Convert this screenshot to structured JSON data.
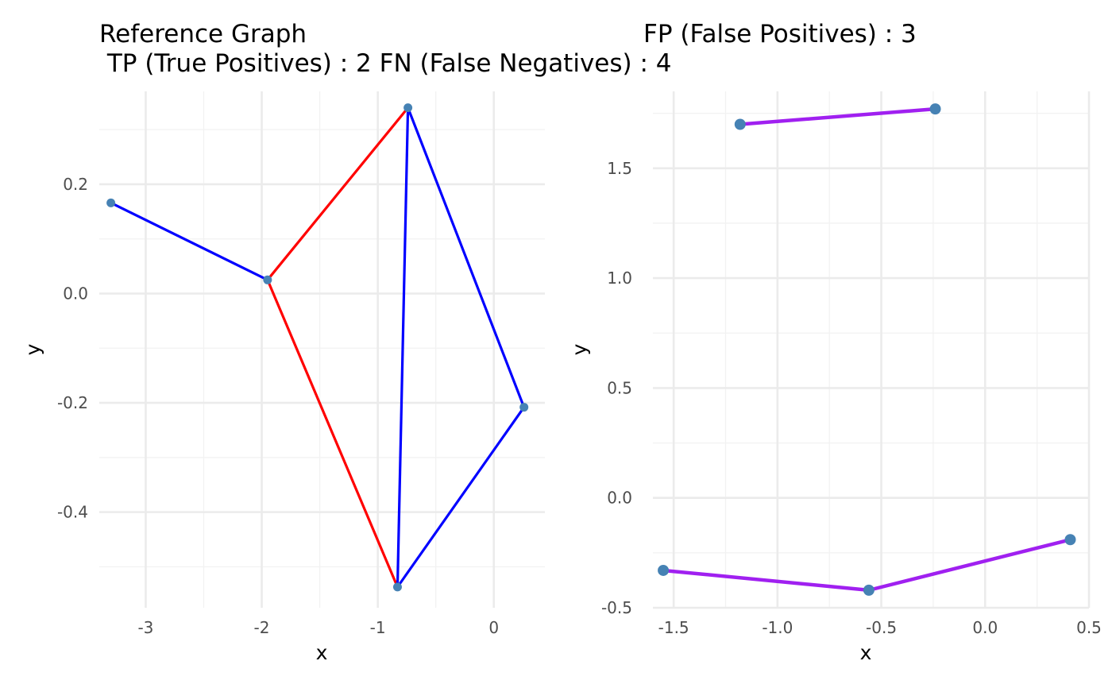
{
  "titles": {
    "left_line1": "Reference Graph",
    "left_line2": " TP (True Positives) : 2 FN (False Negatives) : 4",
    "right_line1": "FP (False Positives) : 3"
  },
  "colors": {
    "tp_edge": "#FF0000",
    "fn_edge": "#0000FF",
    "fp_edge": "#A020F0",
    "node": "#4682B4",
    "grid_major": "#EBEBEB",
    "grid_minor": "#F2F2F2",
    "tick_text": "#4D4D4D"
  },
  "chart_data": [
    {
      "type": "network",
      "name": "reference",
      "xlabel": "x",
      "ylabel": "y",
      "xlim": [
        -3.4,
        0.44
      ],
      "ylim": [
        -0.575,
        0.37
      ],
      "xticks": [
        -3,
        -2,
        -1,
        0
      ],
      "xtick_labels": [
        "-3",
        "-2",
        "-1",
        "0"
      ],
      "yticks": [
        -0.4,
        -0.2,
        0.0,
        0.2
      ],
      "ytick_labels": [
        "-0.4",
        "-0.2",
        "0.0",
        "0.2"
      ],
      "xminor": [
        -2.5,
        -1.5,
        -0.5
      ],
      "yminor": [
        -0.5,
        -0.3,
        -0.1,
        0.1,
        0.3
      ],
      "grid": true,
      "nodes": [
        {
          "x": -3.3,
          "y": 0.166
        },
        {
          "x": -1.95,
          "y": 0.025
        },
        {
          "x": -0.74,
          "y": 0.34
        },
        {
          "x": 0.26,
          "y": -0.208
        },
        {
          "x": -0.83,
          "y": -0.537
        }
      ],
      "edges": [
        {
          "from": 0,
          "to": 1,
          "kind": "FN"
        },
        {
          "from": 1,
          "to": 2,
          "kind": "TP"
        },
        {
          "from": 1,
          "to": 4,
          "kind": "TP"
        },
        {
          "from": 2,
          "to": 4,
          "kind": "FN"
        },
        {
          "from": 2,
          "to": 3,
          "kind": "FN"
        },
        {
          "from": 3,
          "to": 4,
          "kind": "FN"
        }
      ]
    },
    {
      "type": "network",
      "name": "false-positives",
      "xlabel": "x",
      "ylabel": "y",
      "xlim": [
        -1.6,
        0.5
      ],
      "ylim": [
        -0.5,
        1.85
      ],
      "xticks": [
        -1.5,
        -1.0,
        -0.5,
        0.0,
        0.5
      ],
      "xtick_labels": [
        "-1.5",
        "-1.0",
        "-0.5",
        "0.0",
        "0.5"
      ],
      "yticks": [
        -0.5,
        0.0,
        0.5,
        1.0,
        1.5
      ],
      "ytick_labels": [
        "-0.5",
        "0.0",
        "0.5",
        "1.0",
        "1.5"
      ],
      "xminor": [
        -1.25,
        -0.75,
        -0.25,
        0.25
      ],
      "yminor": [
        -0.25,
        0.25,
        0.75,
        1.25,
        1.75
      ],
      "grid": true,
      "nodes": [
        {
          "x": -1.18,
          "y": 1.7
        },
        {
          "x": -0.24,
          "y": 1.77
        },
        {
          "x": -1.55,
          "y": -0.33
        },
        {
          "x": -0.56,
          "y": -0.42
        },
        {
          "x": 0.41,
          "y": -0.19
        }
      ],
      "edges": [
        {
          "from": 0,
          "to": 1,
          "kind": "FP"
        },
        {
          "from": 2,
          "to": 3,
          "kind": "FP"
        },
        {
          "from": 3,
          "to": 4,
          "kind": "FP"
        }
      ]
    }
  ]
}
